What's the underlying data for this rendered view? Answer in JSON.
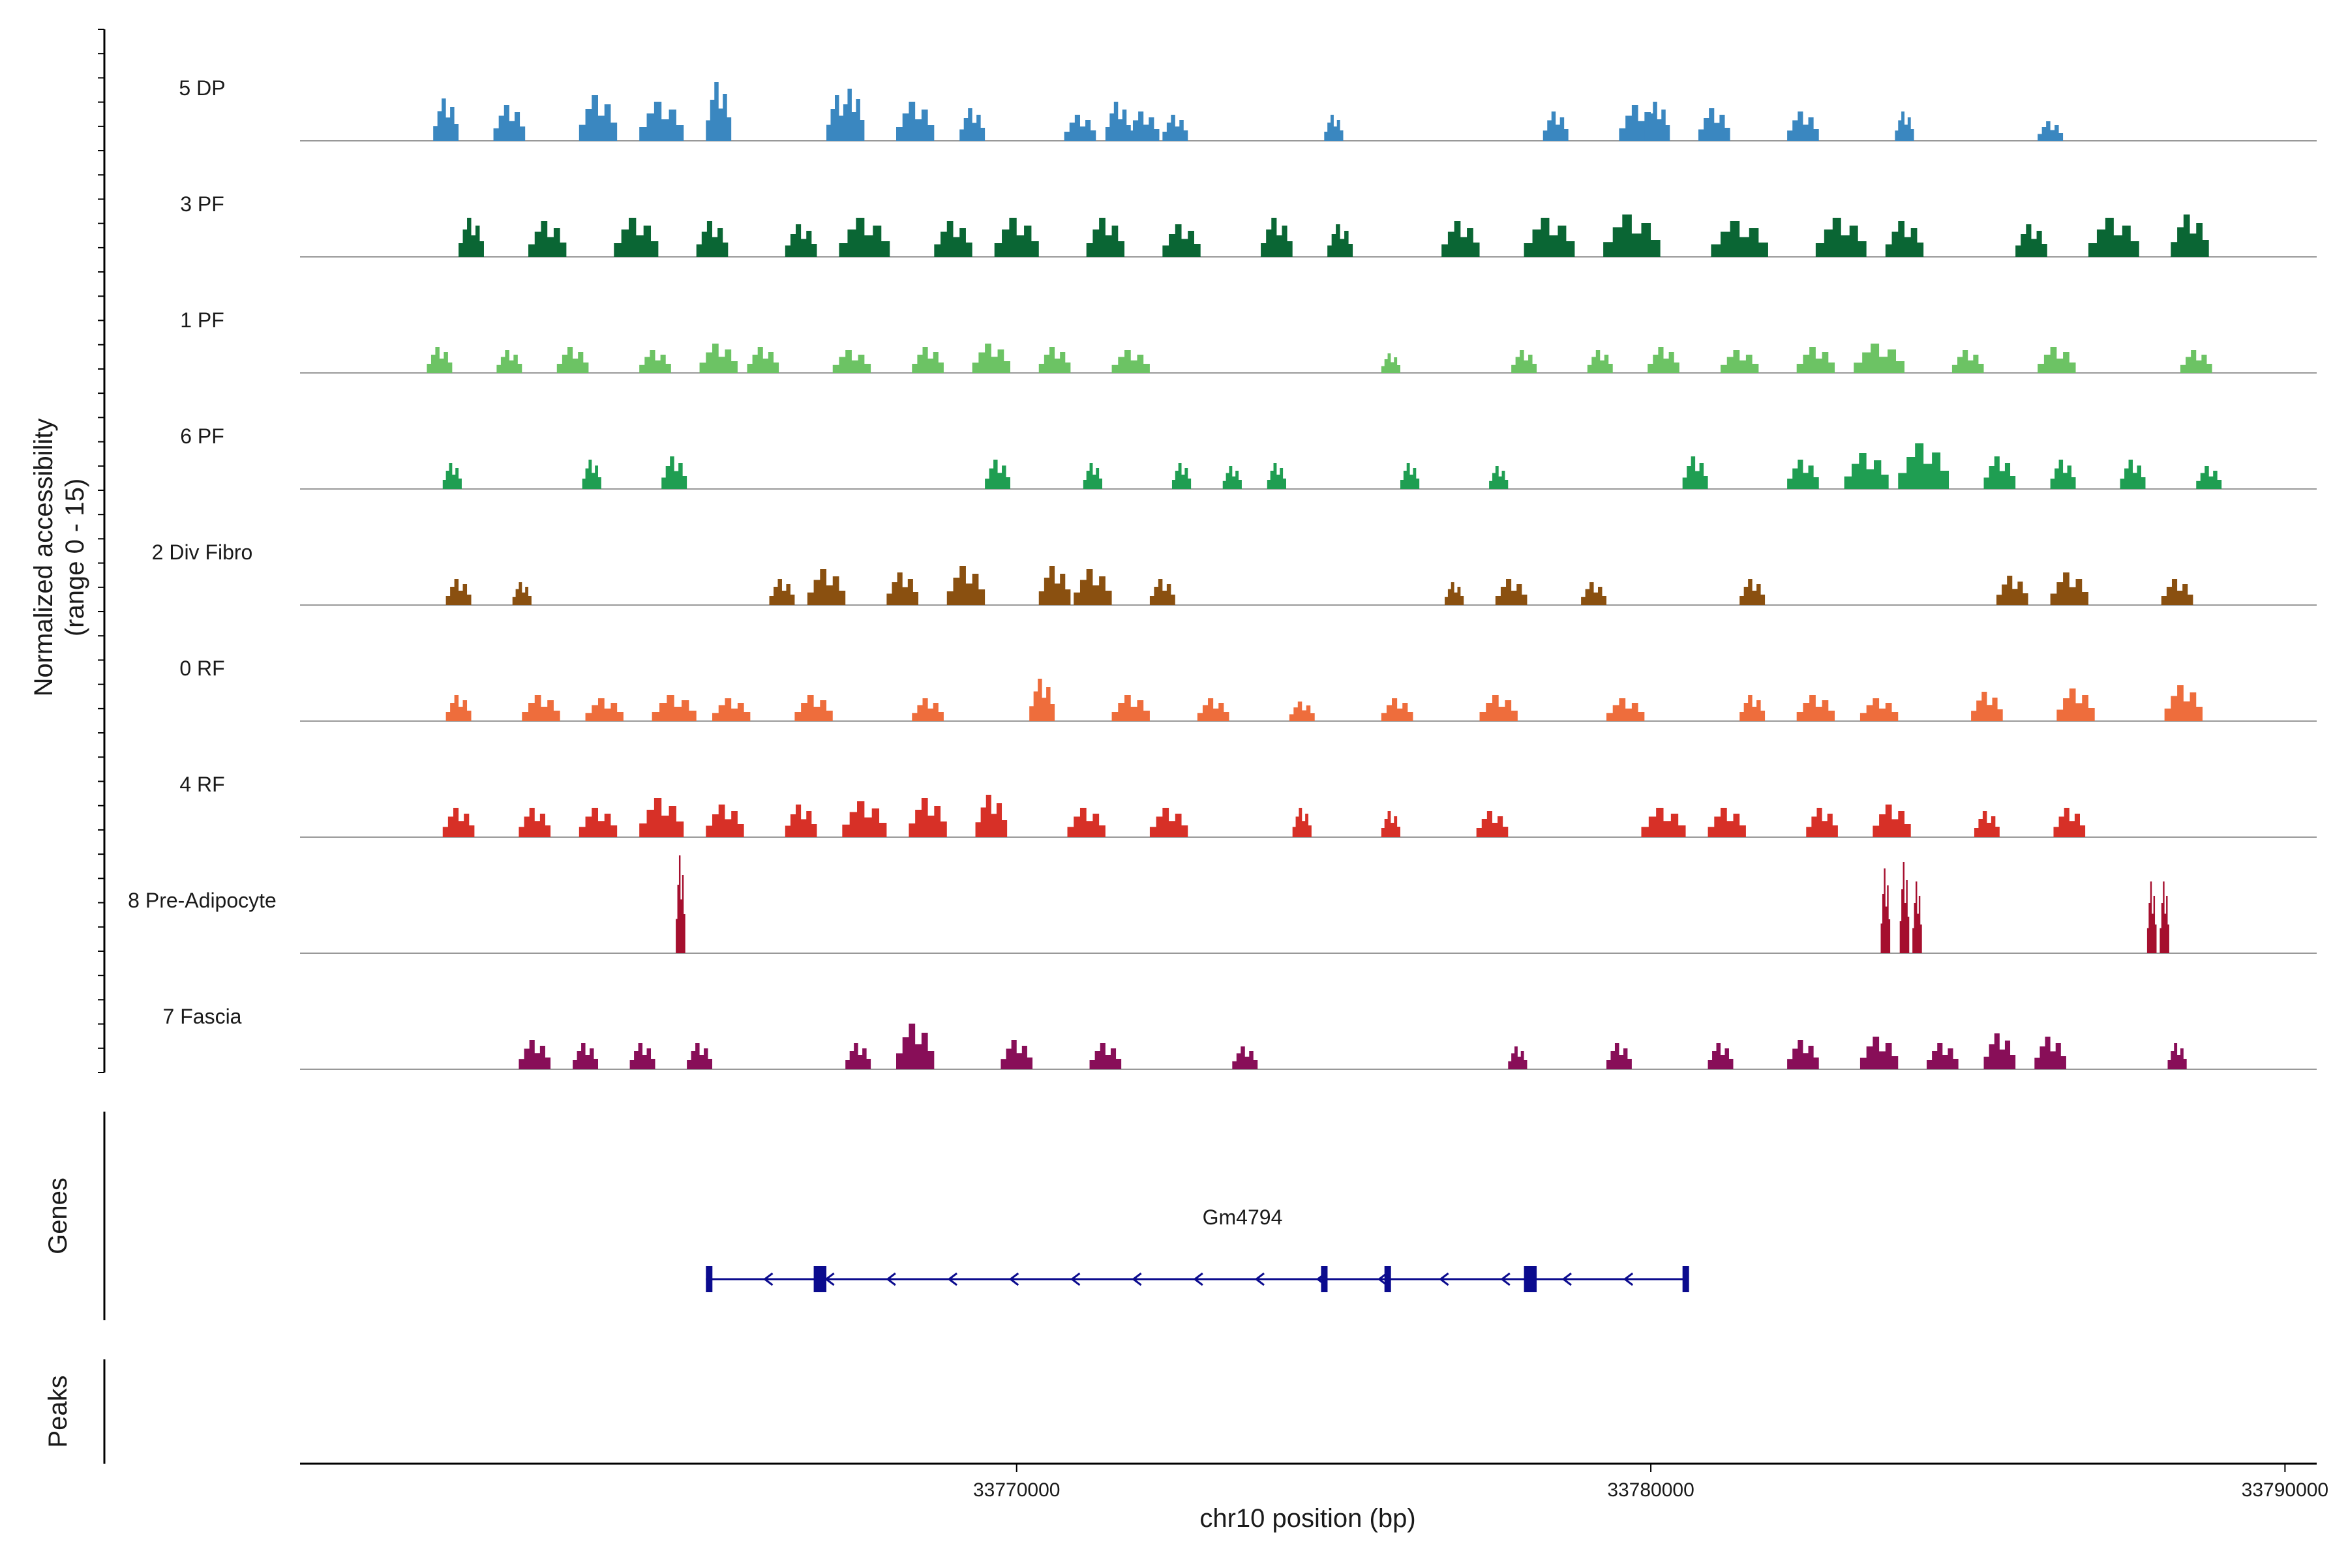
{
  "chart_data": {
    "type": "coverage-track",
    "ylabel_line1": "Normalized accessibility",
    "ylabel_line2": "(range 0 - 15)",
    "y_range": [
      0,
      15
    ],
    "xlabel": "chr10 position (bp)",
    "x_range": [
      33758700,
      33790500
    ],
    "x_ticks": [
      33770000,
      33780000,
      33790000
    ],
    "x_tick_labels": [
      "33770000",
      "33780000",
      "33790000"
    ],
    "tracks": [
      {
        "name": "5 DP",
        "color": "#3a87c0",
        "peaks": [
          [
            33761.0,
            0.4,
            13
          ],
          [
            33762.0,
            0.5,
            11
          ],
          [
            33763.4,
            0.6,
            14
          ],
          [
            33764.4,
            0.7,
            12
          ],
          [
            33765.3,
            0.4,
            18
          ],
          [
            33767.2,
            0.4,
            14
          ],
          [
            33767.4,
            0.4,
            16
          ],
          [
            33768.4,
            0.6,
            12
          ],
          [
            33769.3,
            0.4,
            10
          ],
          [
            33771.0,
            0.5,
            8
          ],
          [
            33771.6,
            0.4,
            12
          ],
          [
            33772.0,
            0.5,
            9
          ],
          [
            33772.5,
            0.4,
            8
          ],
          [
            33775.0,
            0.3,
            8
          ],
          [
            33778.5,
            0.4,
            9
          ],
          [
            33779.8,
            0.6,
            11
          ],
          [
            33780.1,
            0.4,
            12
          ],
          [
            33781.0,
            0.5,
            10
          ],
          [
            33782.4,
            0.5,
            9
          ],
          [
            33784.0,
            0.3,
            9
          ],
          [
            33786.3,
            0.4,
            6
          ]
        ]
      },
      {
        "name": "3 PF",
        "color": "#0a6634",
        "peaks": [
          [
            33761.4,
            0.4,
            12
          ],
          [
            33762.6,
            0.6,
            11
          ],
          [
            33764.0,
            0.7,
            12
          ],
          [
            33765.2,
            0.5,
            11
          ],
          [
            33766.6,
            0.5,
            10
          ],
          [
            33767.6,
            0.8,
            12
          ],
          [
            33769.0,
            0.6,
            11
          ],
          [
            33770.0,
            0.7,
            12
          ],
          [
            33771.4,
            0.6,
            12
          ],
          [
            33772.6,
            0.6,
            10
          ],
          [
            33774.1,
            0.5,
            12
          ],
          [
            33775.1,
            0.4,
            10
          ],
          [
            33777.0,
            0.6,
            11
          ],
          [
            33778.4,
            0.8,
            12
          ],
          [
            33779.7,
            0.9,
            13
          ],
          [
            33781.4,
            0.9,
            11
          ],
          [
            33783.0,
            0.8,
            12
          ],
          [
            33784.0,
            0.6,
            11
          ],
          [
            33786.0,
            0.5,
            10
          ],
          [
            33787.3,
            0.8,
            12
          ],
          [
            33788.5,
            0.6,
            13
          ]
        ]
      },
      {
        "name": "1 PF",
        "color": "#6cc364",
        "peaks": [
          [
            33760.9,
            0.4,
            8
          ],
          [
            33762.0,
            0.4,
            7
          ],
          [
            33763.0,
            0.5,
            8
          ],
          [
            33764.3,
            0.5,
            7
          ],
          [
            33765.3,
            0.6,
            9
          ],
          [
            33766.0,
            0.5,
            8
          ],
          [
            33767.4,
            0.6,
            7
          ],
          [
            33768.6,
            0.5,
            8
          ],
          [
            33769.6,
            0.6,
            9
          ],
          [
            33770.6,
            0.5,
            8
          ],
          [
            33771.8,
            0.6,
            7
          ],
          [
            33775.9,
            0.3,
            6
          ],
          [
            33778.0,
            0.4,
            7
          ],
          [
            33779.2,
            0.4,
            7
          ],
          [
            33780.2,
            0.5,
            8
          ],
          [
            33781.4,
            0.6,
            7
          ],
          [
            33782.6,
            0.6,
            8
          ],
          [
            33783.6,
            0.8,
            9
          ],
          [
            33785.0,
            0.5,
            7
          ],
          [
            33786.4,
            0.6,
            8
          ],
          [
            33788.6,
            0.5,
            7
          ]
        ]
      },
      {
        "name": "6 PF",
        "color": "#1f9e52",
        "peaks": [
          [
            33761.1,
            0.3,
            8
          ],
          [
            33763.3,
            0.3,
            9
          ],
          [
            33764.6,
            0.4,
            10
          ],
          [
            33769.7,
            0.4,
            9
          ],
          [
            33771.2,
            0.3,
            8
          ],
          [
            33772.6,
            0.3,
            8
          ],
          [
            33773.4,
            0.3,
            7
          ],
          [
            33774.1,
            0.3,
            8
          ],
          [
            33776.2,
            0.3,
            8
          ],
          [
            33777.6,
            0.3,
            7
          ],
          [
            33780.7,
            0.4,
            10
          ],
          [
            33782.4,
            0.5,
            9
          ],
          [
            33783.4,
            0.7,
            11
          ],
          [
            33784.3,
            0.8,
            14
          ],
          [
            33785.5,
            0.5,
            10
          ],
          [
            33786.5,
            0.4,
            9
          ],
          [
            33787.6,
            0.4,
            9
          ],
          [
            33788.8,
            0.4,
            7
          ]
        ]
      },
      {
        "name": "2 Div Fibro",
        "color": "#8a5010",
        "peaks": [
          [
            33761.2,
            0.4,
            8
          ],
          [
            33762.2,
            0.3,
            7
          ],
          [
            33766.3,
            0.4,
            8
          ],
          [
            33767.0,
            0.6,
            11
          ],
          [
            33768.2,
            0.5,
            10
          ],
          [
            33769.2,
            0.6,
            12
          ],
          [
            33770.6,
            0.5,
            12
          ],
          [
            33771.2,
            0.6,
            11
          ],
          [
            33772.3,
            0.4,
            8
          ],
          [
            33776.9,
            0.3,
            7
          ],
          [
            33777.8,
            0.5,
            8
          ],
          [
            33779.1,
            0.4,
            7
          ],
          [
            33781.6,
            0.4,
            8
          ],
          [
            33785.7,
            0.5,
            9
          ],
          [
            33786.6,
            0.6,
            10
          ],
          [
            33788.3,
            0.5,
            8
          ]
        ]
      },
      {
        "name": "0 RF",
        "color": "#ee6d3c",
        "peaks": [
          [
            33761.2,
            0.4,
            8
          ],
          [
            33762.5,
            0.6,
            8
          ],
          [
            33763.5,
            0.6,
            7
          ],
          [
            33764.6,
            0.7,
            8
          ],
          [
            33765.5,
            0.6,
            7
          ],
          [
            33766.8,
            0.6,
            8
          ],
          [
            33768.6,
            0.5,
            7
          ],
          [
            33770.4,
            0.4,
            13
          ],
          [
            33771.8,
            0.6,
            8
          ],
          [
            33773.1,
            0.5,
            7
          ],
          [
            33774.5,
            0.4,
            6
          ],
          [
            33776.0,
            0.5,
            7
          ],
          [
            33777.6,
            0.6,
            8
          ],
          [
            33779.6,
            0.6,
            7
          ],
          [
            33781.6,
            0.4,
            8
          ],
          [
            33782.6,
            0.6,
            8
          ],
          [
            33783.6,
            0.6,
            7
          ],
          [
            33785.3,
            0.5,
            9
          ],
          [
            33786.7,
            0.6,
            10
          ],
          [
            33788.4,
            0.6,
            11
          ]
        ]
      },
      {
        "name": "4 RF",
        "color": "#d73027",
        "peaks": [
          [
            33761.2,
            0.5,
            9
          ],
          [
            33762.4,
            0.5,
            9
          ],
          [
            33763.4,
            0.6,
            9
          ],
          [
            33764.4,
            0.7,
            12
          ],
          [
            33765.4,
            0.6,
            10
          ],
          [
            33766.6,
            0.5,
            10
          ],
          [
            33767.6,
            0.7,
            11
          ],
          [
            33768.6,
            0.6,
            12
          ],
          [
            33769.6,
            0.5,
            13
          ],
          [
            33771.1,
            0.6,
            9
          ],
          [
            33772.4,
            0.6,
            9
          ],
          [
            33774.5,
            0.3,
            9
          ],
          [
            33775.9,
            0.3,
            8
          ],
          [
            33777.5,
            0.5,
            8
          ],
          [
            33780.2,
            0.7,
            9
          ],
          [
            33781.2,
            0.6,
            9
          ],
          [
            33782.7,
            0.5,
            9
          ],
          [
            33783.8,
            0.6,
            10
          ],
          [
            33785.3,
            0.4,
            8
          ],
          [
            33786.6,
            0.5,
            9
          ]
        ]
      },
      {
        "name": "8 Pre-Adipocyte",
        "color": "#a50f2e",
        "peaks": [
          [
            33764.7,
            0.15,
            30
          ],
          [
            33783.7,
            0.15,
            26
          ],
          [
            33784.0,
            0.15,
            28
          ],
          [
            33784.2,
            0.15,
            22
          ],
          [
            33787.9,
            0.15,
            22
          ],
          [
            33788.1,
            0.15,
            22
          ]
        ]
      },
      {
        "name": "7 Fascia",
        "color": "#880e58",
        "peaks": [
          [
            33762.4,
            0.5,
            9
          ],
          [
            33763.2,
            0.4,
            8
          ],
          [
            33764.1,
            0.4,
            8
          ],
          [
            33765.0,
            0.4,
            8
          ],
          [
            33767.5,
            0.4,
            8
          ],
          [
            33768.4,
            0.6,
            14
          ],
          [
            33770.0,
            0.5,
            9
          ],
          [
            33771.4,
            0.5,
            8
          ],
          [
            33773.6,
            0.4,
            7
          ],
          [
            33777.9,
            0.3,
            7
          ],
          [
            33779.5,
            0.4,
            8
          ],
          [
            33781.1,
            0.4,
            8
          ],
          [
            33782.4,
            0.5,
            9
          ],
          [
            33783.6,
            0.6,
            10
          ],
          [
            33784.6,
            0.5,
            8
          ],
          [
            33785.5,
            0.5,
            11
          ],
          [
            33786.3,
            0.5,
            10
          ],
          [
            33788.3,
            0.3,
            8
          ]
        ]
      }
    ],
    "genes_label": "Genes",
    "peaks_label": "Peaks",
    "gene": {
      "name": "Gm4794",
      "start": 33765.1,
      "end": 33780.6,
      "strand": "-",
      "color": "#0b0b8e",
      "exons": [
        [
          33765.1,
          33765.2
        ],
        [
          33766.8,
          33767.0
        ],
        [
          33774.8,
          33774.9
        ],
        [
          33775.8,
          33775.9
        ],
        [
          33778.0,
          33778.2
        ],
        [
          33780.5,
          33780.6
        ]
      ]
    }
  }
}
